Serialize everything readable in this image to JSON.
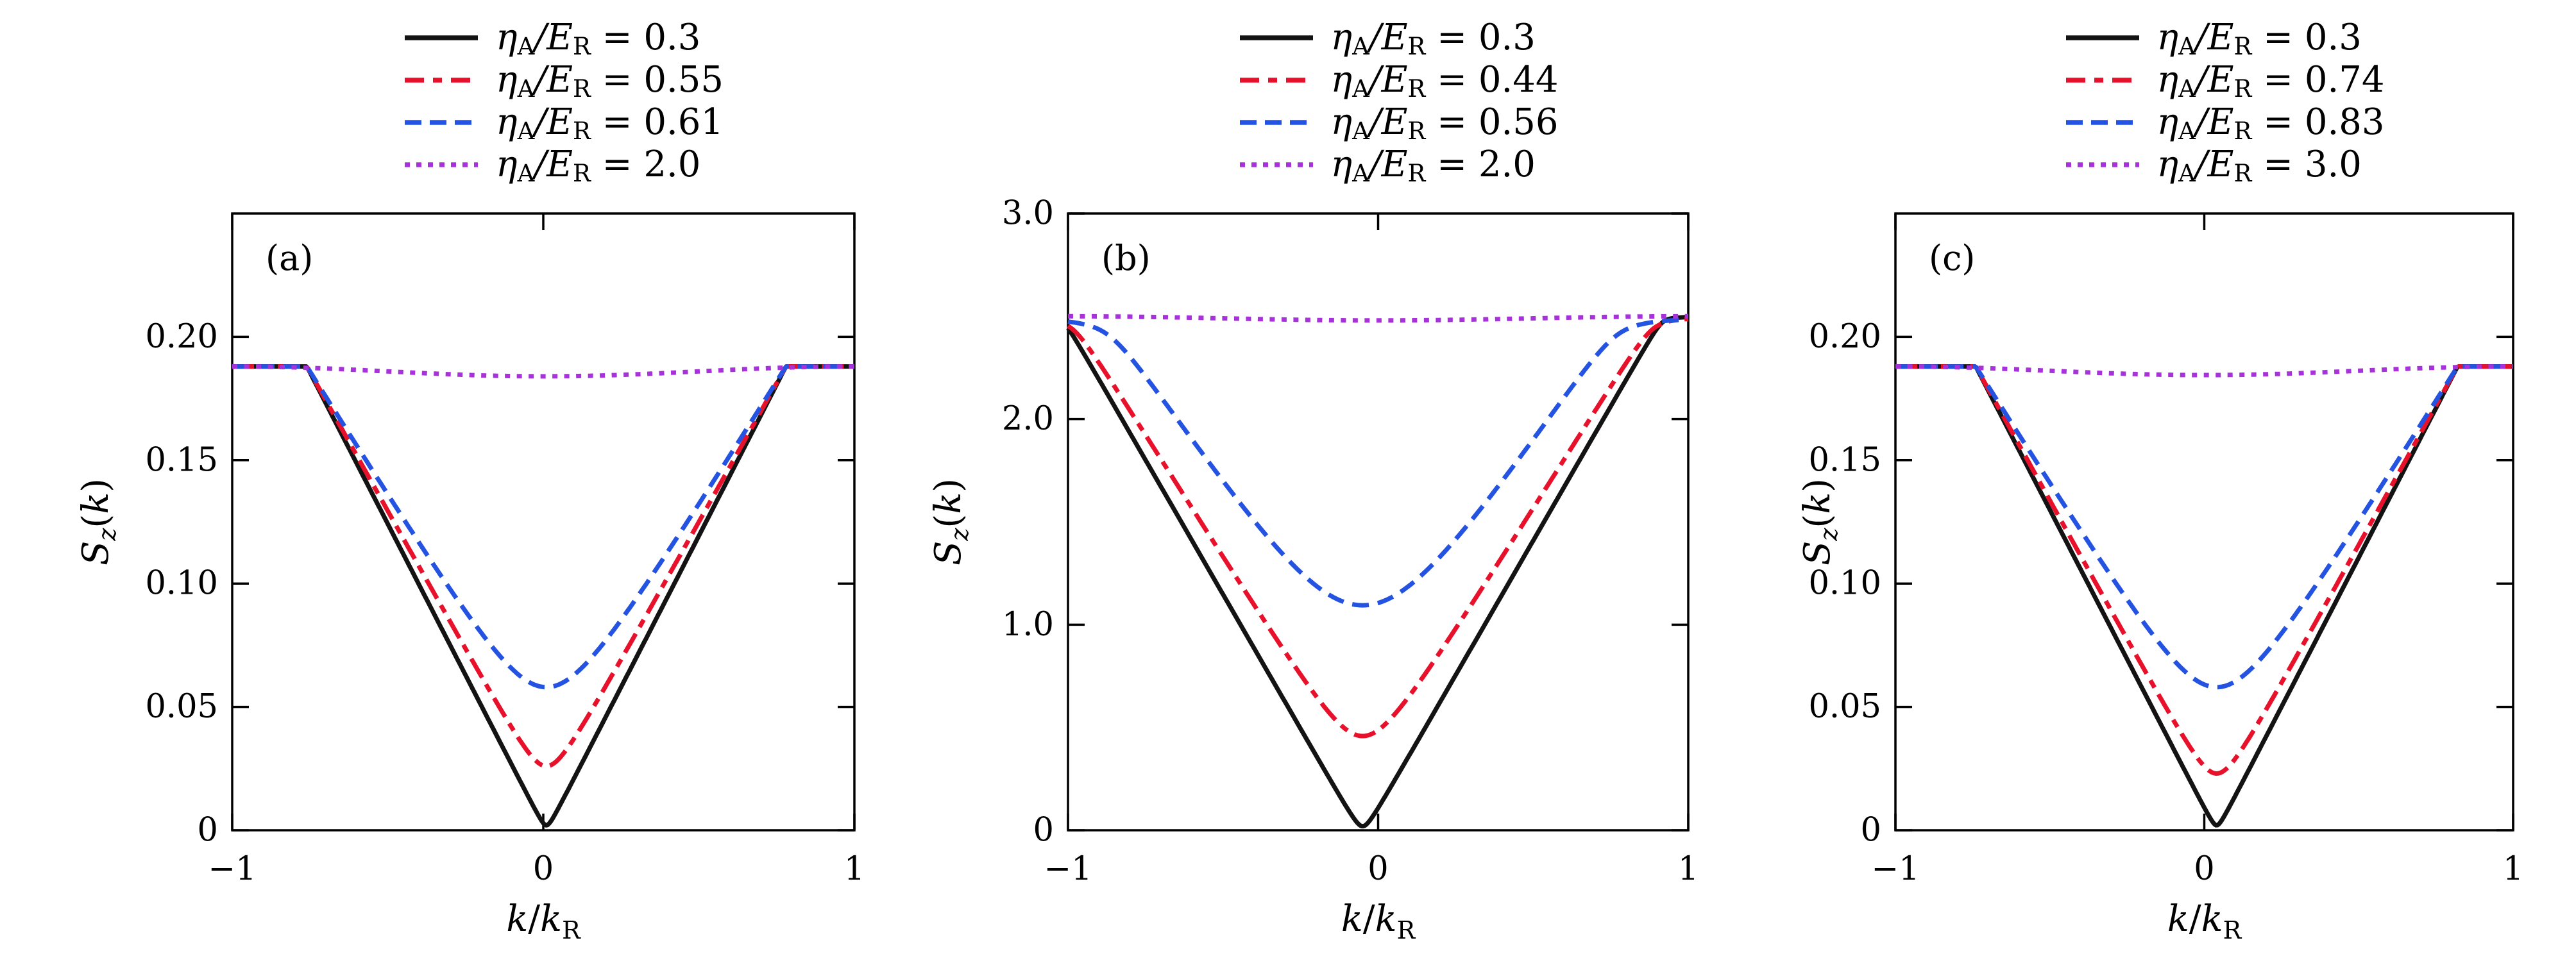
{
  "figure": {
    "background": "#ffffff",
    "axis_color": "#000000",
    "text_color": "#000000",
    "math": {
      "eta": "η",
      "sub_A": "A",
      "slash": "/",
      "E": "E",
      "sub_R": "R",
      "equals": "=",
      "ylabel_S": "S",
      "ylabel_sub": "z",
      "paren_open": "(",
      "ylabel_k": "k",
      "paren_close": ")",
      "xlabel_k1": "k",
      "xlabel_slash": "/",
      "xlabel_k2": "k",
      "xlabel_sub": "R"
    },
    "colors": {
      "black": "#131313",
      "red": "#e8112b",
      "blue": "#2353e0",
      "purple": "#a832d9"
    }
  },
  "chart_data": [
    {
      "type": "line",
      "panel_label": "(a)",
      "xlabel": "k/k_R",
      "ylabel": "S_z(k)",
      "xlim": [
        -1,
        1
      ],
      "ylim": [
        0,
        0.25
      ],
      "grid": false,
      "xticks": {
        "values": [
          -1,
          0,
          1
        ],
        "labels": [
          "−1",
          "0",
          "1"
        ]
      },
      "yticks": {
        "values": [
          0.2,
          0.15,
          0.1,
          0.05,
          0
        ],
        "labels": [
          "0.20",
          "0.15",
          "0.10",
          "0.05",
          "0"
        ]
      },
      "legend": {
        "position": "above",
        "entries": [
          {
            "value": "0.3",
            "color": "#131313",
            "style": "solid"
          },
          {
            "value": "0.55",
            "color": "#e8112b",
            "style": "dashdot"
          },
          {
            "value": "0.61",
            "color": "#2353e0",
            "style": "dashed"
          },
          {
            "value": "2.0",
            "color": "#a832d9",
            "style": "dotted"
          }
        ]
      },
      "series": [
        {
          "name": "eta_A/E_R = 0.3",
          "color": "#131313",
          "style": "solid",
          "model": {
            "kind": "plateau_v",
            "plateau": 0.188,
            "min": 0.002,
            "x0": 0.01,
            "halfwidth": 0.77,
            "round": 0.012
          },
          "key_points": {
            "edge_value": 0.188,
            "kinks_x": [
              -0.76,
              0.78
            ],
            "minimum": [
              0.01,
              0.002
            ]
          }
        },
        {
          "name": "eta_A/E_R = 0.55",
          "color": "#e8112b",
          "style": "dashdot",
          "model": {
            "kind": "plateau_v",
            "plateau": 0.188,
            "min": 0.026,
            "x0": 0.01,
            "halfwidth": 0.77,
            "round": 0.055
          },
          "key_points": {
            "edge_value": 0.188,
            "kinks_x": [
              -0.76,
              0.78
            ],
            "minimum": [
              0.01,
              0.026
            ]
          }
        },
        {
          "name": "eta_A/E_R = 0.61",
          "color": "#2353e0",
          "style": "dashed",
          "model": {
            "kind": "plateau_v",
            "plateau": 0.188,
            "min": 0.058,
            "x0": 0.01,
            "halfwidth": 0.77,
            "round": 0.15
          },
          "key_points": {
            "edge_value": 0.188,
            "kinks_x": [
              -0.76,
              0.78
            ],
            "minimum": [
              0.01,
              0.058
            ]
          }
        },
        {
          "name": "eta_A/E_R = 2.0",
          "color": "#a832d9",
          "style": "dotted",
          "model": {
            "kind": "flat_dip",
            "base": 0.188,
            "dip": 0.004,
            "x0": 0
          },
          "key_points": {
            "edge_value": 0.188,
            "center_value": 0.184
          }
        }
      ]
    },
    {
      "type": "line",
      "panel_label": "(b)",
      "xlabel": "k/k_R",
      "ylabel": "S_z(k)",
      "xlim": [
        -1,
        1
      ],
      "ylim": [
        0,
        3.0
      ],
      "grid": false,
      "xticks": {
        "values": [
          -1,
          0,
          1
        ],
        "labels": [
          "−1",
          "0",
          "1"
        ]
      },
      "yticks": {
        "values": [
          3.0,
          2.0,
          1.0,
          0
        ],
        "labels": [
          "3.0",
          "2.0",
          "1.0",
          "0"
        ]
      },
      "legend": {
        "position": "above",
        "entries": [
          {
            "value": "0.3",
            "color": "#131313",
            "style": "solid"
          },
          {
            "value": "0.44",
            "color": "#e8112b",
            "style": "dashdot"
          },
          {
            "value": "0.56",
            "color": "#2353e0",
            "style": "dashed"
          },
          {
            "value": "2.0",
            "color": "#a832d9",
            "style": "dotted"
          }
        ]
      },
      "series": [
        {
          "name": "eta_A/E_R = 0.3",
          "color": "#131313",
          "style": "solid",
          "model": {
            "kind": "cap_v",
            "min": 0.02,
            "x0": -0.05,
            "slope": 2.62,
            "round": 0.02,
            "cap": 2.5,
            "delta": 0.06
          },
          "key_points": {
            "edge_value": 2.45,
            "minimum": [
              -0.05,
              0.02
            ]
          }
        },
        {
          "name": "eta_A/E_R = 0.44",
          "color": "#e8112b",
          "style": "dashdot",
          "model": {
            "kind": "cap_v",
            "min": 0.46,
            "x0": -0.05,
            "slope": 2.42,
            "round": 0.1,
            "cap": 2.5,
            "delta": 0.12
          },
          "key_points": {
            "edge_value": 2.48,
            "minimum": [
              -0.05,
              0.46
            ]
          }
        },
        {
          "name": "eta_A/E_R = 0.56",
          "color": "#2353e0",
          "style": "dashed",
          "model": {
            "kind": "cap_v",
            "min": 1.1,
            "x0": -0.05,
            "slope": 2.3,
            "round": 0.25,
            "cap": 2.5,
            "delta": 0.18
          },
          "key_points": {
            "edge_value": 2.5,
            "minimum": [
              -0.05,
              1.1
            ]
          }
        },
        {
          "name": "eta_A/E_R = 2.0",
          "color": "#a832d9",
          "style": "dotted",
          "model": {
            "kind": "flat_dip",
            "base": 2.5,
            "dip": 0.02,
            "x0": 0
          },
          "key_points": {
            "edge_value": 2.5,
            "center_value": 2.48
          }
        }
      ]
    },
    {
      "type": "line",
      "panel_label": "(c)",
      "xlabel": "k/k_R",
      "ylabel": "S_z(k)",
      "xlim": [
        -1,
        1
      ],
      "ylim": [
        0,
        0.25
      ],
      "grid": false,
      "xticks": {
        "values": [
          -1,
          0,
          1
        ],
        "labels": [
          "−1",
          "0",
          "1"
        ]
      },
      "yticks": {
        "values": [
          0.2,
          0.15,
          0.1,
          0.05,
          0
        ],
        "labels": [
          "0.20",
          "0.15",
          "0.10",
          "0.05",
          "0"
        ]
      },
      "legend": {
        "position": "above",
        "entries": [
          {
            "value": "0.3",
            "color": "#131313",
            "style": "solid"
          },
          {
            "value": "0.74",
            "color": "#e8112b",
            "style": "dashdot"
          },
          {
            "value": "0.83",
            "color": "#2353e0",
            "style": "dashed"
          },
          {
            "value": "3.0",
            "color": "#a832d9",
            "style": "dotted"
          }
        ]
      },
      "series": [
        {
          "name": "eta_A/E_R = 0.3",
          "color": "#131313",
          "style": "solid",
          "model": {
            "kind": "plateau_v",
            "plateau": 0.188,
            "min": 0.002,
            "x0": 0.04,
            "halfwidth": 0.78,
            "round": 0.012
          },
          "key_points": {
            "edge_value": 0.188,
            "kinks_x": [
              -0.74,
              0.82
            ],
            "minimum": [
              0.04,
              0.002
            ]
          }
        },
        {
          "name": "eta_A/E_R = 0.74",
          "color": "#e8112b",
          "style": "dashdot",
          "model": {
            "kind": "plateau_v",
            "plateau": 0.188,
            "min": 0.023,
            "x0": 0.04,
            "halfwidth": 0.78,
            "round": 0.055
          },
          "key_points": {
            "edge_value": 0.188,
            "kinks_x": [
              -0.74,
              0.82
            ],
            "minimum": [
              0.04,
              0.023
            ]
          }
        },
        {
          "name": "eta_A/E_R = 0.83",
          "color": "#2353e0",
          "style": "dashed",
          "model": {
            "kind": "plateau_v",
            "plateau": 0.188,
            "min": 0.058,
            "x0": 0.04,
            "halfwidth": 0.78,
            "round": 0.15
          },
          "key_points": {
            "edge_value": 0.188,
            "kinks_x": [
              -0.74,
              0.82
            ],
            "minimum": [
              0.04,
              0.058
            ]
          }
        },
        {
          "name": "eta_A/E_R = 3.0",
          "color": "#a832d9",
          "style": "dotted",
          "model": {
            "kind": "flat_dip",
            "base": 0.188,
            "dip": 0.0035,
            "x0": 0
          },
          "key_points": {
            "edge_value": 0.188,
            "center_value": 0.1845
          }
        }
      ]
    }
  ]
}
